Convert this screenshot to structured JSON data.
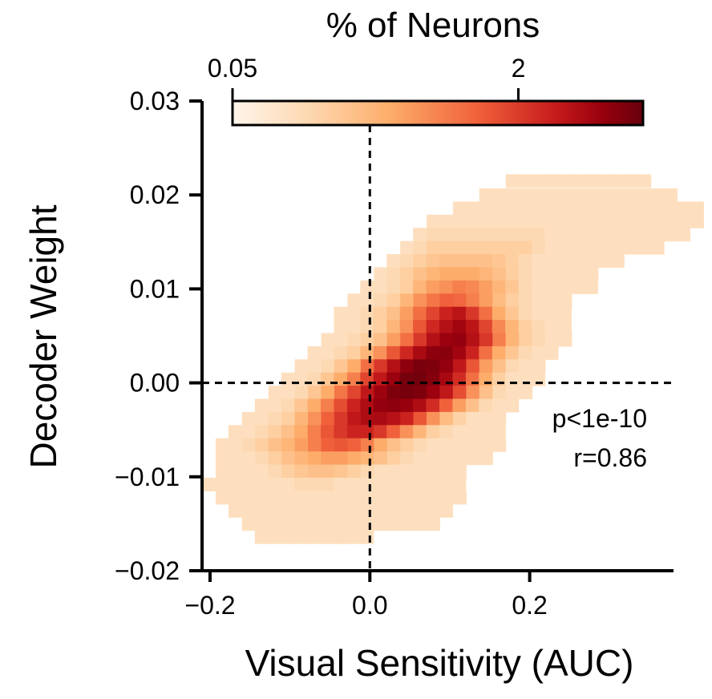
{
  "chart_data": {
    "type": "heatmap",
    "xlabel": "Visual Sensitivity (AUC)",
    "ylabel": "Decoder Weight",
    "xlim": [
      -0.21,
      0.38
    ],
    "ylim": [
      -0.02,
      0.03
    ],
    "x_ticks": [
      -0.2,
      0.0,
      0.2
    ],
    "x_tick_labels": [
      "−0.2",
      "0.0",
      "0.2"
    ],
    "y_ticks": [
      -0.02,
      -0.01,
      0.0,
      0.01,
      0.02,
      0.03
    ],
    "y_tick_labels": [
      "−0.02",
      "−0.01",
      "0.00",
      "0.01",
      "0.02",
      "0.03"
    ],
    "reference_lines": {
      "x": 0.0,
      "y": 0.0,
      "style": "dashed"
    },
    "grid": false,
    "bin_width_x": 0.0165,
    "bin_height_y": 0.0014,
    "colorbar": {
      "title": "% of Neurons",
      "scale": "log",
      "min": 0.05,
      "max": 10,
      "tick_values": [
        0.05,
        2
      ],
      "tick_labels": [
        "0.05",
        "2"
      ],
      "colormap": [
        "#fff5eb",
        "#fdd9b3",
        "#fdae6b",
        "#f0603a",
        "#c81d1d",
        "#99000d",
        "#67000d"
      ]
    },
    "annotations": [
      "p<1e-10",
      "r=0.86"
    ],
    "bins_percent": [
      {
        "y": 0.0215,
        "x_start": 0.17,
        "values": [
          0.1,
          0.1,
          0.1,
          0.1,
          0.1,
          0.1,
          0.1,
          0.1,
          0.1,
          0.1,
          0.1
        ]
      },
      {
        "y": 0.02,
        "x_start": 0.137,
        "values": [
          0.1,
          0.1,
          0.1,
          0.1,
          0.1,
          0.1,
          0.1,
          0.1,
          0.1,
          0.1,
          0.1,
          0.1,
          0.1,
          0.1,
          0.1
        ]
      },
      {
        "y": 0.0186,
        "x_start": 0.104,
        "values": [
          0.1,
          0.1,
          0.1,
          0.1,
          0.1,
          0.1,
          0.1,
          0.1,
          0.1,
          0.1,
          0.1,
          0.1,
          0.1,
          0.1,
          0.1,
          0.1,
          0.1,
          0.1,
          0.1
        ]
      },
      {
        "y": 0.0172,
        "x_start": 0.071,
        "values": [
          0.1,
          0.1,
          0.1,
          0.1,
          0.1,
          0.1,
          0.1,
          0.1,
          0.1,
          0.1,
          0.1,
          0.1,
          0.1,
          0.1,
          0.1,
          0.1,
          0.1,
          0.1,
          0.1,
          0.1,
          0.1
        ]
      },
      {
        "y": 0.0158,
        "x_start": 0.054,
        "values": [
          0.1,
          0.12,
          0.12,
          0.12,
          0.12,
          0.12,
          0.12,
          0.12,
          0.12,
          0.12,
          0.1,
          0.1,
          0.1,
          0.1,
          0.1,
          0.1,
          0.1,
          0.1,
          0.1,
          0.1,
          0.1
        ]
      },
      {
        "y": 0.0144,
        "x_start": 0.038,
        "values": [
          0.1,
          0.12,
          0.15,
          0.15,
          0.15,
          0.15,
          0.15,
          0.15,
          0.15,
          0.15,
          0.12,
          0.1,
          0.1,
          0.1,
          0.1,
          0.1,
          0.1,
          0.1,
          0.1,
          0.1
        ]
      },
      {
        "y": 0.013,
        "x_start": 0.021,
        "values": [
          0.1,
          0.12,
          0.15,
          0.18,
          0.2,
          0.2,
          0.2,
          0.2,
          0.18,
          0.15,
          0.12,
          0.1,
          0.1,
          0.1,
          0.1,
          0.1,
          0.1,
          0.1
        ]
      },
      {
        "y": 0.0116,
        "x_start": 0.005,
        "values": [
          0.1,
          0.12,
          0.15,
          0.2,
          0.25,
          0.3,
          0.3,
          0.3,
          0.25,
          0.2,
          0.15,
          0.12,
          0.1,
          0.1,
          0.1,
          0.1,
          0.1
        ]
      },
      {
        "y": 0.0102,
        "x_start": -0.012,
        "values": [
          0.1,
          0.1,
          0.12,
          0.15,
          0.25,
          0.35,
          0.4,
          0.5,
          0.45,
          0.35,
          0.25,
          0.18,
          0.12,
          0.1,
          0.1,
          0.1,
          0.1,
          0.1
        ]
      },
      {
        "y": 0.0088,
        "x_start": -0.028,
        "values": [
          0.1,
          0.1,
          0.12,
          0.15,
          0.25,
          0.4,
          0.55,
          0.7,
          0.65,
          0.5,
          0.35,
          0.22,
          0.15,
          0.12,
          0.1,
          0.1,
          0.1
        ]
      },
      {
        "y": 0.0074,
        "x_start": -0.045,
        "values": [
          0.1,
          0.1,
          0.12,
          0.15,
          0.2,
          0.35,
          0.6,
          1.0,
          1.6,
          2.2,
          1.2,
          0.6,
          0.3,
          0.18,
          0.12,
          0.1,
          0.1,
          0.1
        ]
      },
      {
        "y": 0.006,
        "x_start": -0.045,
        "values": [
          0.1,
          0.1,
          0.12,
          0.15,
          0.25,
          0.4,
          0.8,
          1.5,
          2.5,
          3.5,
          2.2,
          1.0,
          0.45,
          0.25,
          0.15,
          0.12,
          0.1,
          0.1
        ]
      },
      {
        "y": 0.0046,
        "x_start": -0.061,
        "values": [
          0.1,
          0.1,
          0.12,
          0.15,
          0.2,
          0.35,
          0.6,
          1.2,
          2.5,
          4.0,
          4.5,
          2.5,
          1.2,
          0.5,
          0.25,
          0.15,
          0.12,
          0.1,
          0.1
        ]
      },
      {
        "y": 0.0032,
        "x_start": -0.078,
        "values": [
          0.1,
          0.1,
          0.12,
          0.15,
          0.25,
          0.4,
          0.8,
          1.5,
          3.0,
          5.0,
          5.5,
          3.5,
          1.6,
          0.6,
          0.3,
          0.18,
          0.12,
          0.1,
          0.1
        ]
      },
      {
        "y": 0.0018,
        "x_start": -0.094,
        "values": [
          0.1,
          0.1,
          0.12,
          0.18,
          0.3,
          0.6,
          1.2,
          2.5,
          5.0,
          7.0,
          6.5,
          4.5,
          2.0,
          0.8,
          0.35,
          0.2,
          0.12,
          0.1,
          0.1
        ]
      },
      {
        "y": 0.0004,
        "x_start": -0.111,
        "values": [
          0.1,
          0.1,
          0.12,
          0.18,
          0.3,
          0.5,
          1.0,
          2.0,
          4.0,
          7.5,
          8.0,
          6.0,
          3.2,
          1.4,
          0.6,
          0.3,
          0.15,
          0.1,
          0.1,
          0.1
        ]
      },
      {
        "y": -0.001,
        "x_start": -0.127,
        "values": [
          0.1,
          0.1,
          0.12,
          0.18,
          0.3,
          0.55,
          1.0,
          2.0,
          3.8,
          6.5,
          7.5,
          6.5,
          4.0,
          2.0,
          0.9,
          0.4,
          0.2,
          0.12,
          0.1,
          0.1
        ]
      },
      {
        "y": -0.0024,
        "x_start": -0.144,
        "values": [
          0.1,
          0.1,
          0.12,
          0.18,
          0.3,
          0.5,
          0.9,
          1.6,
          2.8,
          4.5,
          5.0,
          4.2,
          2.8,
          1.4,
          0.7,
          0.35,
          0.2,
          0.12,
          0.1,
          0.1
        ]
      },
      {
        "y": -0.0038,
        "x_start": -0.16,
        "values": [
          0.1,
          0.1,
          0.12,
          0.15,
          0.25,
          0.4,
          0.7,
          1.2,
          2.0,
          2.8,
          3.0,
          2.4,
          1.6,
          0.8,
          0.4,
          0.22,
          0.14,
          0.1,
          0.1,
          0.1
        ]
      },
      {
        "y": -0.0052,
        "x_start": -0.177,
        "values": [
          0.1,
          0.1,
          0.12,
          0.15,
          0.2,
          0.3,
          0.5,
          0.8,
          1.2,
          1.6,
          1.6,
          1.2,
          0.7,
          0.4,
          0.25,
          0.15,
          0.12,
          0.1,
          0.1,
          0.1,
          0.1
        ]
      },
      {
        "y": -0.0066,
        "x_start": -0.193,
        "values": [
          0.1,
          0.1,
          0.12,
          0.15,
          0.2,
          0.25,
          0.35,
          0.5,
          0.7,
          0.8,
          0.7,
          0.5,
          0.3,
          0.2,
          0.15,
          0.12,
          0.1,
          0.1,
          0.1,
          0.1,
          0.1,
          0.1
        ]
      },
      {
        "y": -0.008,
        "x_start": -0.193,
        "values": [
          0.1,
          0.1,
          0.1,
          0.12,
          0.15,
          0.2,
          0.25,
          0.3,
          0.35,
          0.35,
          0.3,
          0.25,
          0.2,
          0.15,
          0.12,
          0.1,
          0.1,
          0.1,
          0.1,
          0.1,
          0.1
        ]
      },
      {
        "y": -0.0094,
        "x_start": -0.193,
        "values": [
          0.1,
          0.1,
          0.1,
          0.1,
          0.12,
          0.15,
          0.18,
          0.2,
          0.2,
          0.18,
          0.15,
          0.12,
          0.1,
          0.1,
          0.1,
          0.1,
          0.1,
          0.1,
          0.1
        ]
      },
      {
        "y": -0.0108,
        "x_start": -0.21,
        "values": [
          0.1,
          0.1,
          0.1,
          0.1,
          0.1,
          0.1,
          0.1,
          0.12,
          0.12,
          0.12,
          0.1,
          0.1,
          0.1,
          0.1,
          0.1,
          0.1,
          0.1,
          0.1,
          0.1,
          0.1
        ]
      },
      {
        "y": -0.0122,
        "x_start": -0.193,
        "values": [
          0.1,
          0.1,
          0.1,
          0.1,
          0.1,
          0.1,
          0.1,
          0.1,
          0.1,
          0.1,
          0.1,
          0.1,
          0.1,
          0.1,
          0.1,
          0.1,
          0.1,
          0.1,
          0.1
        ]
      },
      {
        "y": -0.0136,
        "x_start": -0.177,
        "values": [
          0.1,
          0.1,
          0.1,
          0.1,
          0.1,
          0.1,
          0.1,
          0.1,
          0.1,
          0.1,
          0.1,
          0.1,
          0.1,
          0.1,
          0.1,
          0.1,
          0.1
        ]
      },
      {
        "y": -0.015,
        "x_start": -0.16,
        "values": [
          0.1,
          0.1,
          0.1,
          0.1,
          0.1,
          0.1,
          0.1,
          0.1,
          0.1,
          0.1,
          0.1,
          0.1,
          0.1,
          0.1,
          0.1
        ]
      },
      {
        "y": -0.0164,
        "x_start": -0.144,
        "values": [
          0.1,
          0.1,
          0.1,
          0.1,
          0.1,
          0.1,
          0.1
        ]
      },
      {
        "y": -0.0164,
        "x_start": -0.045,
        "values": [
          0.1,
          0.1,
          0.1
        ]
      }
    ]
  }
}
